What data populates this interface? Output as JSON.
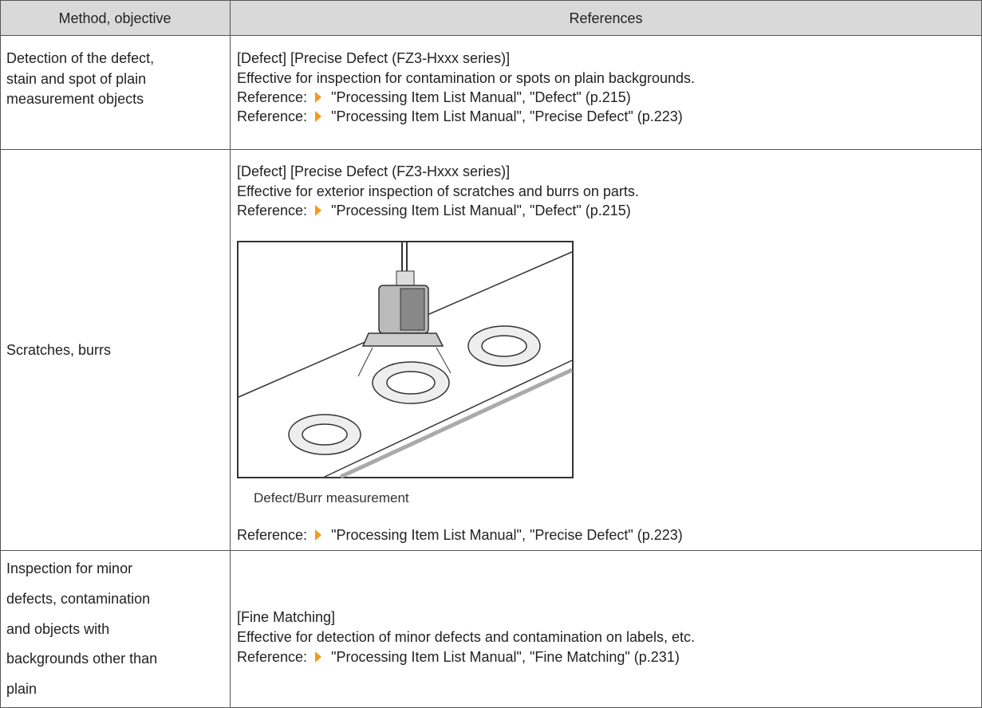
{
  "table": {
    "header": [
      "Method, objective",
      "References"
    ],
    "rows": [
      {
        "method": [
          "Detection of the defect,",
          "stain and spot of plain",
          "measurement objects"
        ],
        "references": [
          {
            "text": "[Defect] [Precise Defect (FZ3-Hxxx series)]"
          },
          {
            "text": "Effective for inspection for contamination or spots on plain backgrounds."
          },
          {
            "label": "Reference:",
            "link": "\"Processing Item List Manual\", \"Defect\" (p.215)"
          },
          {
            "label": "Reference:",
            "link": "\"Processing Item List Manual\", \"Precise Defect\" (p.223)"
          }
        ]
      },
      {
        "method": [
          "Scratches, burrs"
        ],
        "references": [
          {
            "text": "[Defect] [Precise Defect (FZ3-Hxxx series)]"
          },
          {
            "text": "Effective for exterior inspection of scratches and burrs on parts."
          },
          {
            "label": "Reference:",
            "link": "\"Processing Item List Manual\", \"Defect\" (p.215)"
          },
          {
            "caption": "Defect/Burr measurement"
          },
          {
            "label": "Reference:",
            "link": "\"Processing Item List Manual\", \"Precise Defect\" (p.223)"
          }
        ]
      },
      {
        "method": [
          "Inspection for minor",
          "defects, contamination",
          "and objects with",
          "backgrounds other than",
          "plain"
        ],
        "references": [
          {
            "text": "[Fine Matching]"
          },
          {
            "text": "Effective for detection of minor defects and contamination on labels, etc."
          },
          {
            "label": "Reference:",
            "link": "\"Processing Item List Manual\", \"Fine Matching\" (p.231)"
          }
        ]
      }
    ]
  }
}
